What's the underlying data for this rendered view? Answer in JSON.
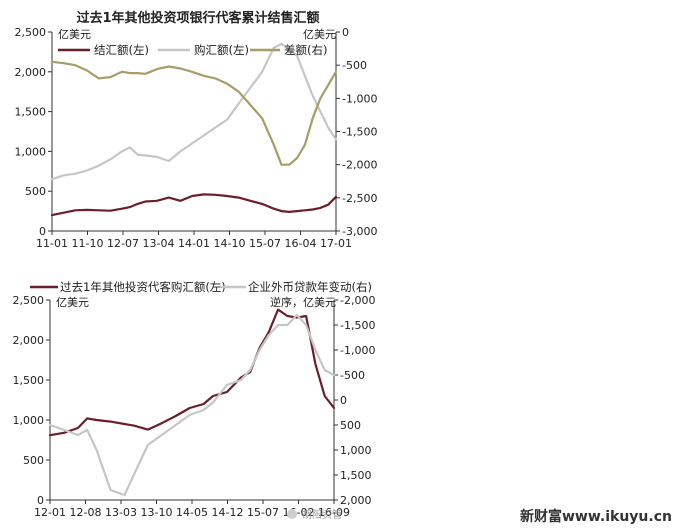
{
  "footer": {
    "site": "新财富www.ikuyu.cn",
    "watermark": "胡阳资管"
  },
  "colors": {
    "dark_red": "#6b1f2a",
    "light_gray": "#c6c6c6",
    "olive": "#a79d66",
    "axis": "#333333"
  },
  "chart_data": [
    {
      "type": "line",
      "title": "过去1年其他投资项银行代客累计结售汇额",
      "left_unit": "亿美元",
      "right_unit": "亿美元",
      "x_ticks": [
        "11-01",
        "11-10",
        "12-07",
        "13-04",
        "14-01",
        "14-10",
        "15-07",
        "16-04",
        "17-01"
      ],
      "ylim_left": [
        0,
        2500
      ],
      "yticks_left": [
        "0",
        "500",
        "1,000",
        "1,500",
        "2,000",
        "2,500"
      ],
      "ylim_right": [
        -3000,
        0
      ],
      "yticks_right": [
        "-3,000",
        "-2,500",
        "-2,000",
        "-1,500",
        "-1,000",
        "-500",
        "0"
      ],
      "legend": [
        "结汇额(左)",
        "购汇额(左)",
        "差额(右)"
      ],
      "x": [
        0,
        3,
        6,
        9,
        12,
        15,
        18,
        20,
        22,
        24,
        27,
        30,
        33,
        36,
        39,
        42,
        45,
        48,
        51,
        54,
        57,
        59,
        61,
        63,
        65,
        67,
        69,
        71,
        73
      ],
      "series": [
        {
          "name": "结汇额(左)",
          "axis": "left",
          "color": "#6b1f2a",
          "values": [
            200,
            230,
            260,
            265,
            260,
            255,
            280,
            300,
            340,
            370,
            380,
            420,
            380,
            440,
            460,
            455,
            440,
            420,
            380,
            340,
            280,
            250,
            240,
            250,
            260,
            270,
            290,
            330,
            430
          ]
        },
        {
          "name": "购汇额(左)",
          "axis": "left",
          "color": "#c6c6c6",
          "values": [
            650,
            700,
            720,
            760,
            820,
            900,
            1000,
            1050,
            960,
            950,
            930,
            880,
            1000,
            1100,
            1200,
            1300,
            1400,
            1600,
            1800,
            2000,
            2300,
            2350,
            2280,
            2200,
            1950,
            1700,
            1500,
            1300,
            1150
          ]
        },
        {
          "name": "差额(右)",
          "axis": "right",
          "color": "#a79d66",
          "values": [
            -450,
            -470,
            -500,
            -580,
            -700,
            -680,
            -600,
            -620,
            -620,
            -630,
            -560,
            -520,
            -550,
            -600,
            -660,
            -700,
            -780,
            -900,
            -1100,
            -1300,
            -1700,
            -2000,
            -2000,
            -1900,
            -1700,
            -1300,
            -1000,
            -800,
            -600
          ]
        }
      ]
    },
    {
      "type": "line",
      "legend": [
        "过去1年其他投资代客购汇额(左)",
        "企业外币贷款年变动(右)"
      ],
      "left_unit": "亿美元",
      "right_unit": "逆序，亿美元",
      "x_ticks": [
        "12-01",
        "12-08",
        "13-03",
        "13-10",
        "14-05",
        "14-12",
        "15-07",
        "16-02",
        "16-09"
      ],
      "ylim_left": [
        0,
        2500
      ],
      "yticks_left": [
        "0",
        "500",
        "1,000",
        "1,500",
        "2,000",
        "2,500"
      ],
      "ylim_right": [
        -2000,
        2000
      ],
      "yticks_right": [
        "-2,000",
        "-1,500",
        "-1,000",
        "-500",
        "0",
        "500",
        "1,000",
        "1,500",
        "2,000"
      ],
      "right_axis_inverted": true,
      "x": [
        0,
        3,
        6,
        8,
        10,
        13,
        16,
        18,
        21,
        24,
        27,
        30,
        33,
        35,
        38,
        41,
        43,
        45,
        47,
        49,
        51,
        53,
        55,
        57,
        59,
        61
      ],
      "series": [
        {
          "name": "过去1年其他投资代客购汇额(左)",
          "axis": "left",
          "color": "#6b1f2a",
          "values": [
            810,
            840,
            900,
            1020,
            1000,
            980,
            950,
            930,
            880,
            960,
            1050,
            1150,
            1200,
            1300,
            1350,
            1530,
            1600,
            1900,
            2100,
            2380,
            2300,
            2280,
            2300,
            1700,
            1300,
            1150
          ]
        },
        {
          "name": "企业外币贷款年变动(右)",
          "axis": "right",
          "color": "#c6c6c6",
          "values": [
            500,
            600,
            700,
            600,
            1000,
            1800,
            1900,
            1500,
            900,
            700,
            500,
            300,
            200,
            50,
            -300,
            -400,
            -600,
            -1000,
            -1300,
            -1500,
            -1500,
            -1700,
            -1500,
            -1000,
            -600,
            -500
          ]
        }
      ]
    }
  ]
}
